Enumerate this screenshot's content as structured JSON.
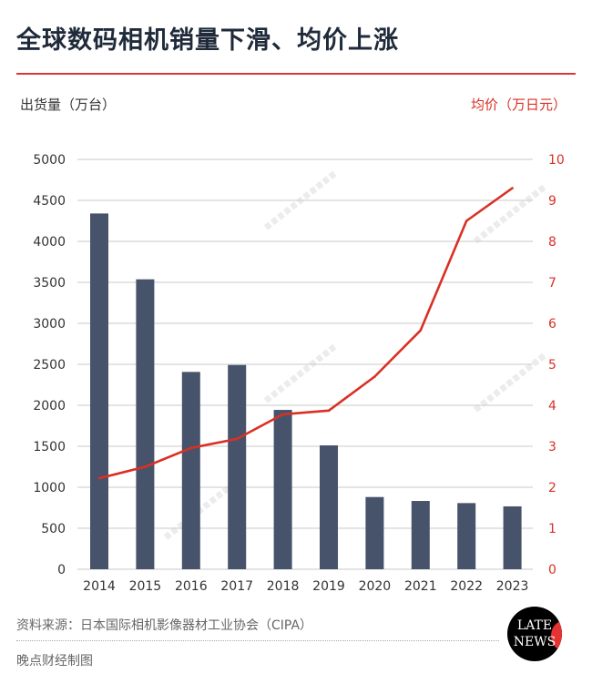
{
  "title": "全球数码相机销量下滑、均价上涨",
  "source": "资料来源：日本国际相机影像器材工业协会（CIPA）",
  "maker": "晚点财经制图",
  "logo_text": [
    "LATE",
    "NEWS"
  ],
  "watermark": "LATE NEWS",
  "chart_data": {
    "type": "bar+line",
    "ylabel": "出货量（万台）",
    "y2label": "均价（万日元）",
    "categories": [
      "2014",
      "2015",
      "2016",
      "2017",
      "2018",
      "2019",
      "2020",
      "2021",
      "2022",
      "2023"
    ],
    "ylim": [
      0,
      5000
    ],
    "yticks": [
      0,
      500,
      1000,
      1500,
      2000,
      2500,
      3000,
      3500,
      4000,
      4500,
      5000
    ],
    "y2lim": [
      0,
      10
    ],
    "y2ticks": [
      0,
      1,
      2,
      3,
      4,
      5,
      6,
      7,
      8,
      9,
      10
    ],
    "grid": true,
    "series": [
      {
        "type": "bar",
        "axis": "left",
        "color": "#46536a",
        "values": [
          4340,
          3537,
          2407,
          2492,
          1944,
          1511,
          881,
          833,
          807,
          767
        ]
      },
      {
        "type": "line",
        "axis": "right",
        "color": "#d93025",
        "values": [
          2.22,
          2.5,
          2.96,
          3.18,
          3.78,
          3.87,
          4.7,
          5.83,
          8.5,
          9.3
        ]
      }
    ]
  }
}
